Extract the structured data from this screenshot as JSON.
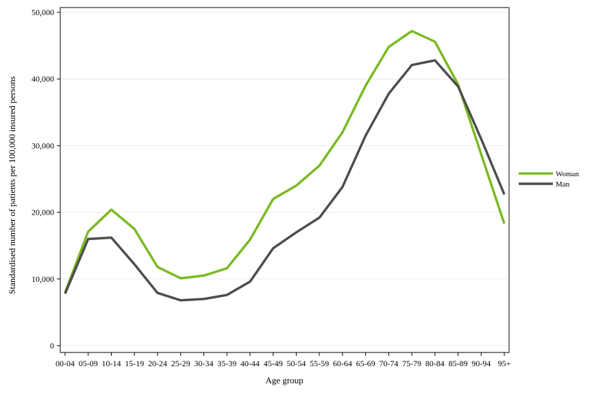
{
  "chart_data": {
    "type": "line",
    "title": "",
    "xlabel": "Age group",
    "ylabel": "Standardised number of patients per 100,000 insured persons",
    "categories": [
      "00-04",
      "05-09",
      "10-14",
      "15-19",
      "20-24",
      "25-29",
      "30-34",
      "35-39",
      "40-44",
      "45-49",
      "50-54",
      "55-59",
      "60-64",
      "65-69",
      "70-74",
      "75-79",
      "80-84",
      "85-89",
      "90-94",
      "95+"
    ],
    "ylim": [
      0,
      50000
    ],
    "yticks": [
      0,
      10000,
      20000,
      30000,
      40000,
      50000
    ],
    "ytick_labels": [
      "0",
      "10,000",
      "20,000",
      "30,000",
      "40,000",
      "50,000"
    ],
    "grid": true,
    "legend_position": "right",
    "series": [
      {
        "name": "Woman",
        "color": "#7aba22",
        "values": [
          8000,
          17100,
          20400,
          17500,
          11800,
          10100,
          10500,
          11600,
          15900,
          22000,
          24000,
          27000,
          32000,
          39000,
          44800,
          47200,
          45600,
          39200,
          28700,
          18300
        ]
      },
      {
        "name": "Man",
        "color": "#4d4d4d",
        "values": [
          7800,
          16000,
          16200,
          12200,
          7900,
          6800,
          7000,
          7600,
          9600,
          14600,
          17000,
          19200,
          23800,
          31500,
          37800,
          42100,
          42800,
          38900,
          31000,
          22700
        ]
      }
    ]
  }
}
